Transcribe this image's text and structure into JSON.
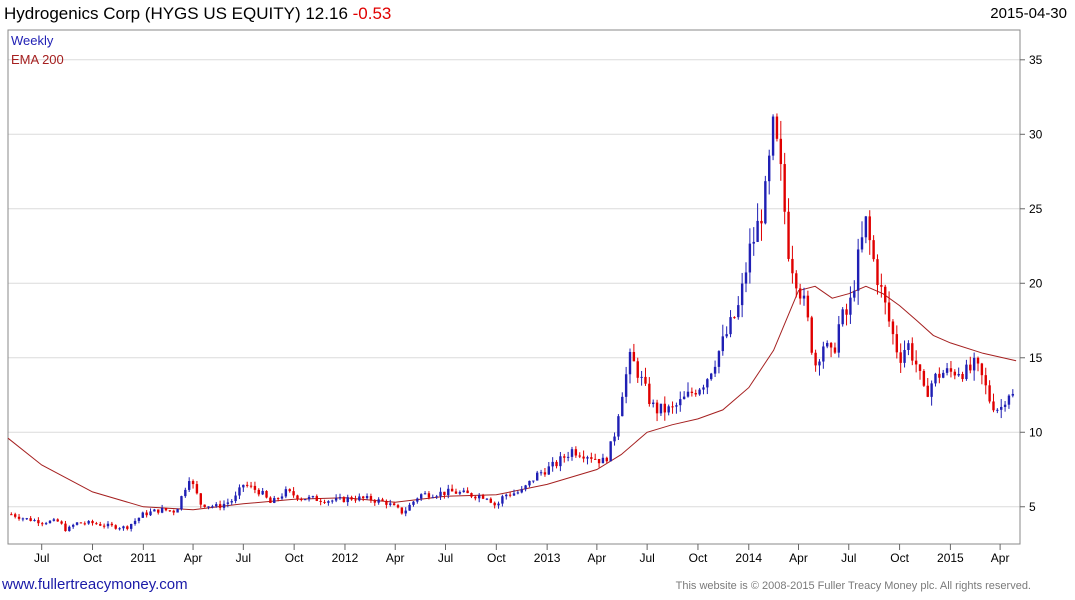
{
  "header": {
    "title": "Hydrogenics Corp (HYGS US EQUITY) 12.16",
    "change": "-0.53",
    "date": "2015-04-30"
  },
  "footer": {
    "site": "www.fullertreacymoney.com",
    "copyright": "This website is © 2008-2015 Fuller Treacy Money plc. All rights reserved."
  },
  "colors": {
    "up": "#1f1fb4",
    "down": "#e00000",
    "ema": "#a52020",
    "grid": "#dcdcdc"
  },
  "chart_data": {
    "type": "candlestick",
    "legend": [
      {
        "label": "Weekly",
        "color": "#1f1fb4"
      },
      {
        "label": "EMA 200",
        "color": "#a52020"
      }
    ],
    "legend_position": "top-left",
    "grid": true,
    "ylim": [
      2.5,
      37
    ],
    "y_ticks": [
      5,
      10,
      15,
      20,
      25,
      30,
      35
    ],
    "x_range": [
      "2010-05-01",
      "2015-05-07"
    ],
    "x_ticks": [
      {
        "date": "2010-07-01",
        "label": "Jul"
      },
      {
        "date": "2010-10-01",
        "label": "Oct"
      },
      {
        "date": "2011-01-01",
        "label": "2011"
      },
      {
        "date": "2011-04-01",
        "label": "Apr"
      },
      {
        "date": "2011-07-01",
        "label": "Jul"
      },
      {
        "date": "2011-10-01",
        "label": "Oct"
      },
      {
        "date": "2012-01-01",
        "label": "2012"
      },
      {
        "date": "2012-04-01",
        "label": "Apr"
      },
      {
        "date": "2012-07-01",
        "label": "Jul"
      },
      {
        "date": "2012-10-01",
        "label": "Oct"
      },
      {
        "date": "2013-01-01",
        "label": "2013"
      },
      {
        "date": "2013-04-01",
        "label": "Apr"
      },
      {
        "date": "2013-07-01",
        "label": "Jul"
      },
      {
        "date": "2013-10-01",
        "label": "Oct"
      },
      {
        "date": "2014-01-01",
        "label": "2014"
      },
      {
        "date": "2014-04-01",
        "label": "Apr"
      },
      {
        "date": "2014-07-01",
        "label": "Jul"
      },
      {
        "date": "2014-10-01",
        "label": "Oct"
      },
      {
        "date": "2015-01-01",
        "label": "2015"
      },
      {
        "date": "2015-04-01",
        "label": "Apr"
      }
    ],
    "weekly_close": [
      [
        "2010-05-07",
        4.5
      ],
      [
        "2010-06-01",
        4.2
      ],
      [
        "2010-07-01",
        4.0
      ],
      [
        "2010-08-01",
        4.0
      ],
      [
        "2010-08-15",
        3.4
      ],
      [
        "2010-09-01",
        3.9
      ],
      [
        "2010-10-01",
        3.9
      ],
      [
        "2010-11-01",
        3.7
      ],
      [
        "2010-12-01",
        3.6
      ],
      [
        "2011-01-01",
        4.5
      ],
      [
        "2011-02-01",
        4.8
      ],
      [
        "2011-03-01",
        4.7
      ],
      [
        "2011-03-25",
        7.0
      ],
      [
        "2011-04-15",
        5.2
      ],
      [
        "2011-05-15",
        5.0
      ],
      [
        "2011-06-15",
        5.5
      ],
      [
        "2011-07-01",
        6.5
      ],
      [
        "2011-08-01",
        6.0
      ],
      [
        "2011-08-20",
        5.2
      ],
      [
        "2011-09-15",
        6.0
      ],
      [
        "2011-10-15",
        5.6
      ],
      [
        "2011-11-15",
        5.5
      ],
      [
        "2011-12-15",
        5.4
      ],
      [
        "2012-01-15",
        5.6
      ],
      [
        "2012-02-15",
        5.5
      ],
      [
        "2012-03-15",
        5.3
      ],
      [
        "2012-04-15",
        4.6
      ],
      [
        "2012-05-15",
        5.8
      ],
      [
        "2012-06-15",
        5.9
      ],
      [
        "2012-07-15",
        6.0
      ],
      [
        "2012-08-15",
        5.8
      ],
      [
        "2012-09-15",
        5.7
      ],
      [
        "2012-10-01",
        5.0
      ],
      [
        "2012-10-15",
        5.8
      ],
      [
        "2012-11-15",
        6.0
      ],
      [
        "2012-12-15",
        7.2
      ],
      [
        "2013-01-15",
        7.8
      ],
      [
        "2013-02-15",
        8.8
      ],
      [
        "2013-03-15",
        8.5
      ],
      [
        "2013-04-15",
        8.0
      ],
      [
        "2013-05-01",
        9.5
      ],
      [
        "2013-05-15",
        12.5
      ],
      [
        "2013-06-01",
        15.0
      ],
      [
        "2013-06-15",
        14.0
      ],
      [
        "2013-07-01",
        12.5
      ],
      [
        "2013-07-15",
        11.5
      ],
      [
        "2013-08-15",
        11.5
      ],
      [
        "2013-09-15",
        12.5
      ],
      [
        "2013-10-15",
        13.5
      ],
      [
        "2013-11-15",
        16.0
      ],
      [
        "2013-12-15",
        18.5
      ],
      [
        "2014-01-01",
        22.0
      ],
      [
        "2014-01-15",
        23.5
      ],
      [
        "2014-02-01",
        26.0
      ],
      [
        "2014-02-15",
        30.5
      ],
      [
        "2014-03-01",
        27.0
      ],
      [
        "2014-03-15",
        22.0
      ],
      [
        "2014-04-01",
        20.0
      ],
      [
        "2014-04-15",
        18.0
      ],
      [
        "2014-05-01",
        14.5
      ],
      [
        "2014-05-15",
        16.0
      ],
      [
        "2014-06-01",
        15.0
      ],
      [
        "2014-06-15",
        17.5
      ],
      [
        "2014-07-01",
        18.0
      ],
      [
        "2014-07-15",
        21.0
      ],
      [
        "2014-08-01",
        24.0
      ],
      [
        "2014-08-15",
        21.5
      ],
      [
        "2014-09-01",
        19.0
      ],
      [
        "2014-09-15",
        17.0
      ],
      [
        "2014-10-01",
        15.0
      ],
      [
        "2014-10-15",
        16.0
      ],
      [
        "2014-11-01",
        14.5
      ],
      [
        "2014-11-15",
        12.5
      ],
      [
        "2014-12-01",
        13.5
      ],
      [
        "2014-12-15",
        14.0
      ],
      [
        "2015-01-01",
        14.0
      ],
      [
        "2015-01-15",
        14.2
      ],
      [
        "2015-02-01",
        14.0
      ],
      [
        "2015-02-15",
        14.5
      ],
      [
        "2015-03-01",
        13.5
      ],
      [
        "2015-03-15",
        12.0
      ],
      [
        "2015-04-01",
        11.5
      ],
      [
        "2015-04-15",
        12.8
      ],
      [
        "2015-04-30",
        12.16
      ]
    ],
    "ema_200": [
      [
        "2010-05-01",
        9.6
      ],
      [
        "2010-07-01",
        7.8
      ],
      [
        "2010-10-01",
        6.0
      ],
      [
        "2011-01-01",
        5.0
      ],
      [
        "2011-04-01",
        4.8
      ],
      [
        "2011-07-01",
        5.2
      ],
      [
        "2011-10-01",
        5.5
      ],
      [
        "2012-01-01",
        5.6
      ],
      [
        "2012-04-01",
        5.3
      ],
      [
        "2012-07-01",
        5.7
      ],
      [
        "2012-10-01",
        5.8
      ],
      [
        "2013-01-01",
        6.5
      ],
      [
        "2013-04-01",
        7.5
      ],
      [
        "2013-05-15",
        8.5
      ],
      [
        "2013-07-01",
        10.0
      ],
      [
        "2013-08-15",
        10.5
      ],
      [
        "2013-10-01",
        10.9
      ],
      [
        "2013-11-15",
        11.5
      ],
      [
        "2014-01-01",
        13.0
      ],
      [
        "2014-02-15",
        15.5
      ],
      [
        "2014-04-01",
        19.5
      ],
      [
        "2014-05-01",
        19.8
      ],
      [
        "2014-06-01",
        19.0
      ],
      [
        "2014-07-01",
        19.3
      ],
      [
        "2014-08-01",
        19.8
      ],
      [
        "2014-09-01",
        19.3
      ],
      [
        "2014-10-01",
        18.5
      ],
      [
        "2014-11-01",
        17.5
      ],
      [
        "2014-12-01",
        16.5
      ],
      [
        "2015-01-01",
        16.0
      ],
      [
        "2015-03-01",
        15.3
      ],
      [
        "2015-04-30",
        14.8
      ]
    ]
  }
}
